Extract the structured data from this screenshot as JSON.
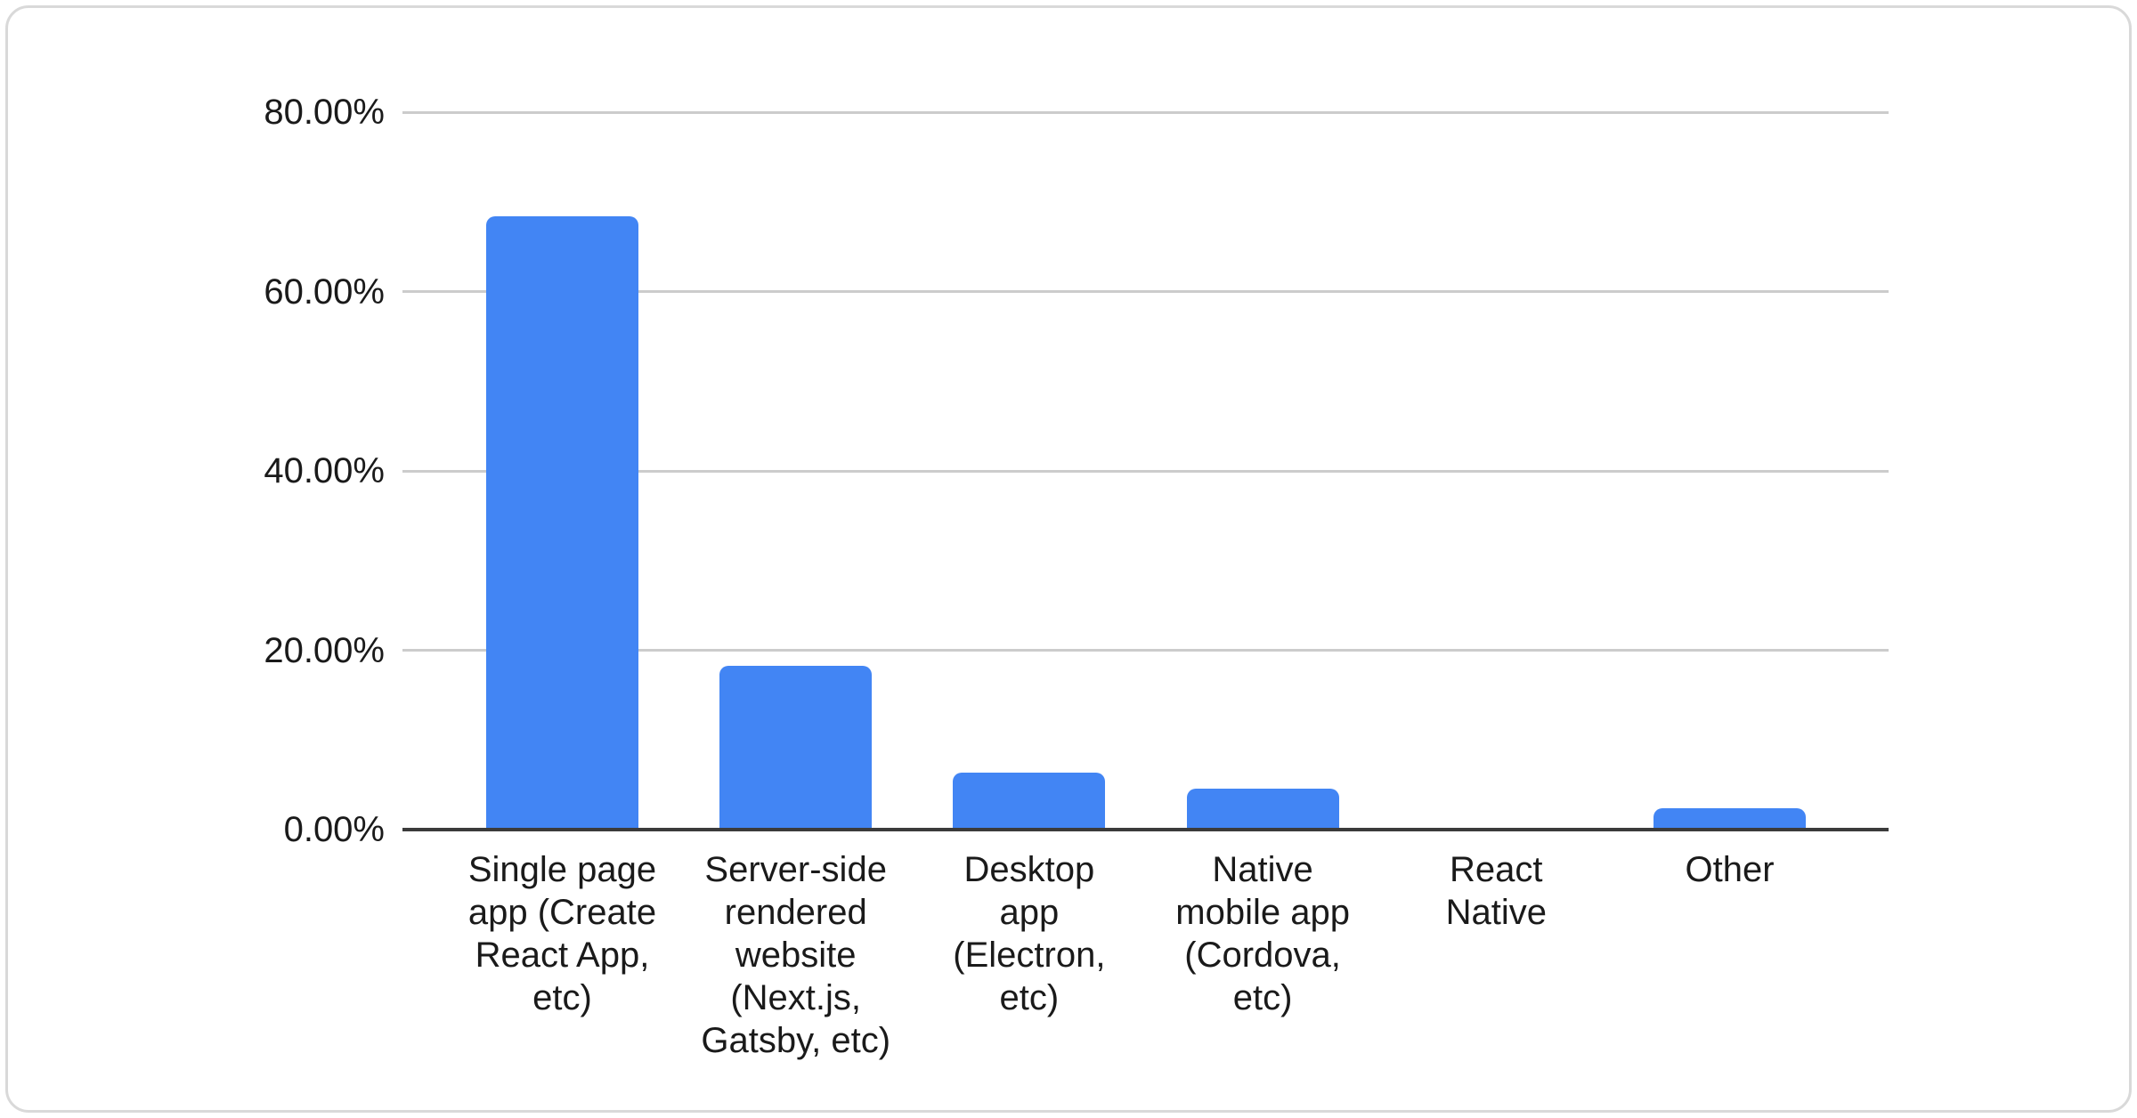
{
  "chart_data": {
    "type": "bar",
    "title": "",
    "xlabel": "",
    "ylabel": "",
    "categories": [
      "Single page app (Create React App, etc)",
      "Server-side rendered website (Next.js, Gatsby, etc)",
      "Desktop app (Electron, etc)",
      "Native mobile app (Cordova, etc)",
      "React Native",
      "Other"
    ],
    "values": [
      68.4,
      18.3,
      6.4,
      4.6,
      0,
      2.4
    ],
    "value_unit": "percent",
    "ylim": [
      0,
      80
    ],
    "yticks": [
      {
        "value": 80,
        "label": "80.00%"
      },
      {
        "value": 60,
        "label": "60.00%"
      },
      {
        "value": 40,
        "label": "40.00%"
      },
      {
        "value": 20,
        "label": "20.00%"
      },
      {
        "value": 0,
        "label": "0.00%"
      }
    ],
    "grid": "horizontal",
    "legend": "none",
    "bar_color": "#4285f4"
  },
  "xaxis": {
    "display_labels": [
      "Single page\napp (Create\nReact App,\netc)",
      "Server-side\nrendered\nwebsite\n(Next.js,\nGatsby, etc)",
      "Desktop\napp\n(Electron,\netc)",
      "Native\nmobile app\n(Cordova,\netc)",
      "React\nNative",
      "Other"
    ],
    "ids": [
      "single-page-app",
      "server-side-rendered-website",
      "desktop-app",
      "native-mobile-app",
      "react-native",
      "other"
    ]
  },
  "colors": {
    "bar": "#4285f4",
    "gridline": "#cccccc",
    "axis_line": "#3b3b3b",
    "text": "#1a1a1a",
    "card_border": "#d9d9d9",
    "background": "#ffffff"
  }
}
